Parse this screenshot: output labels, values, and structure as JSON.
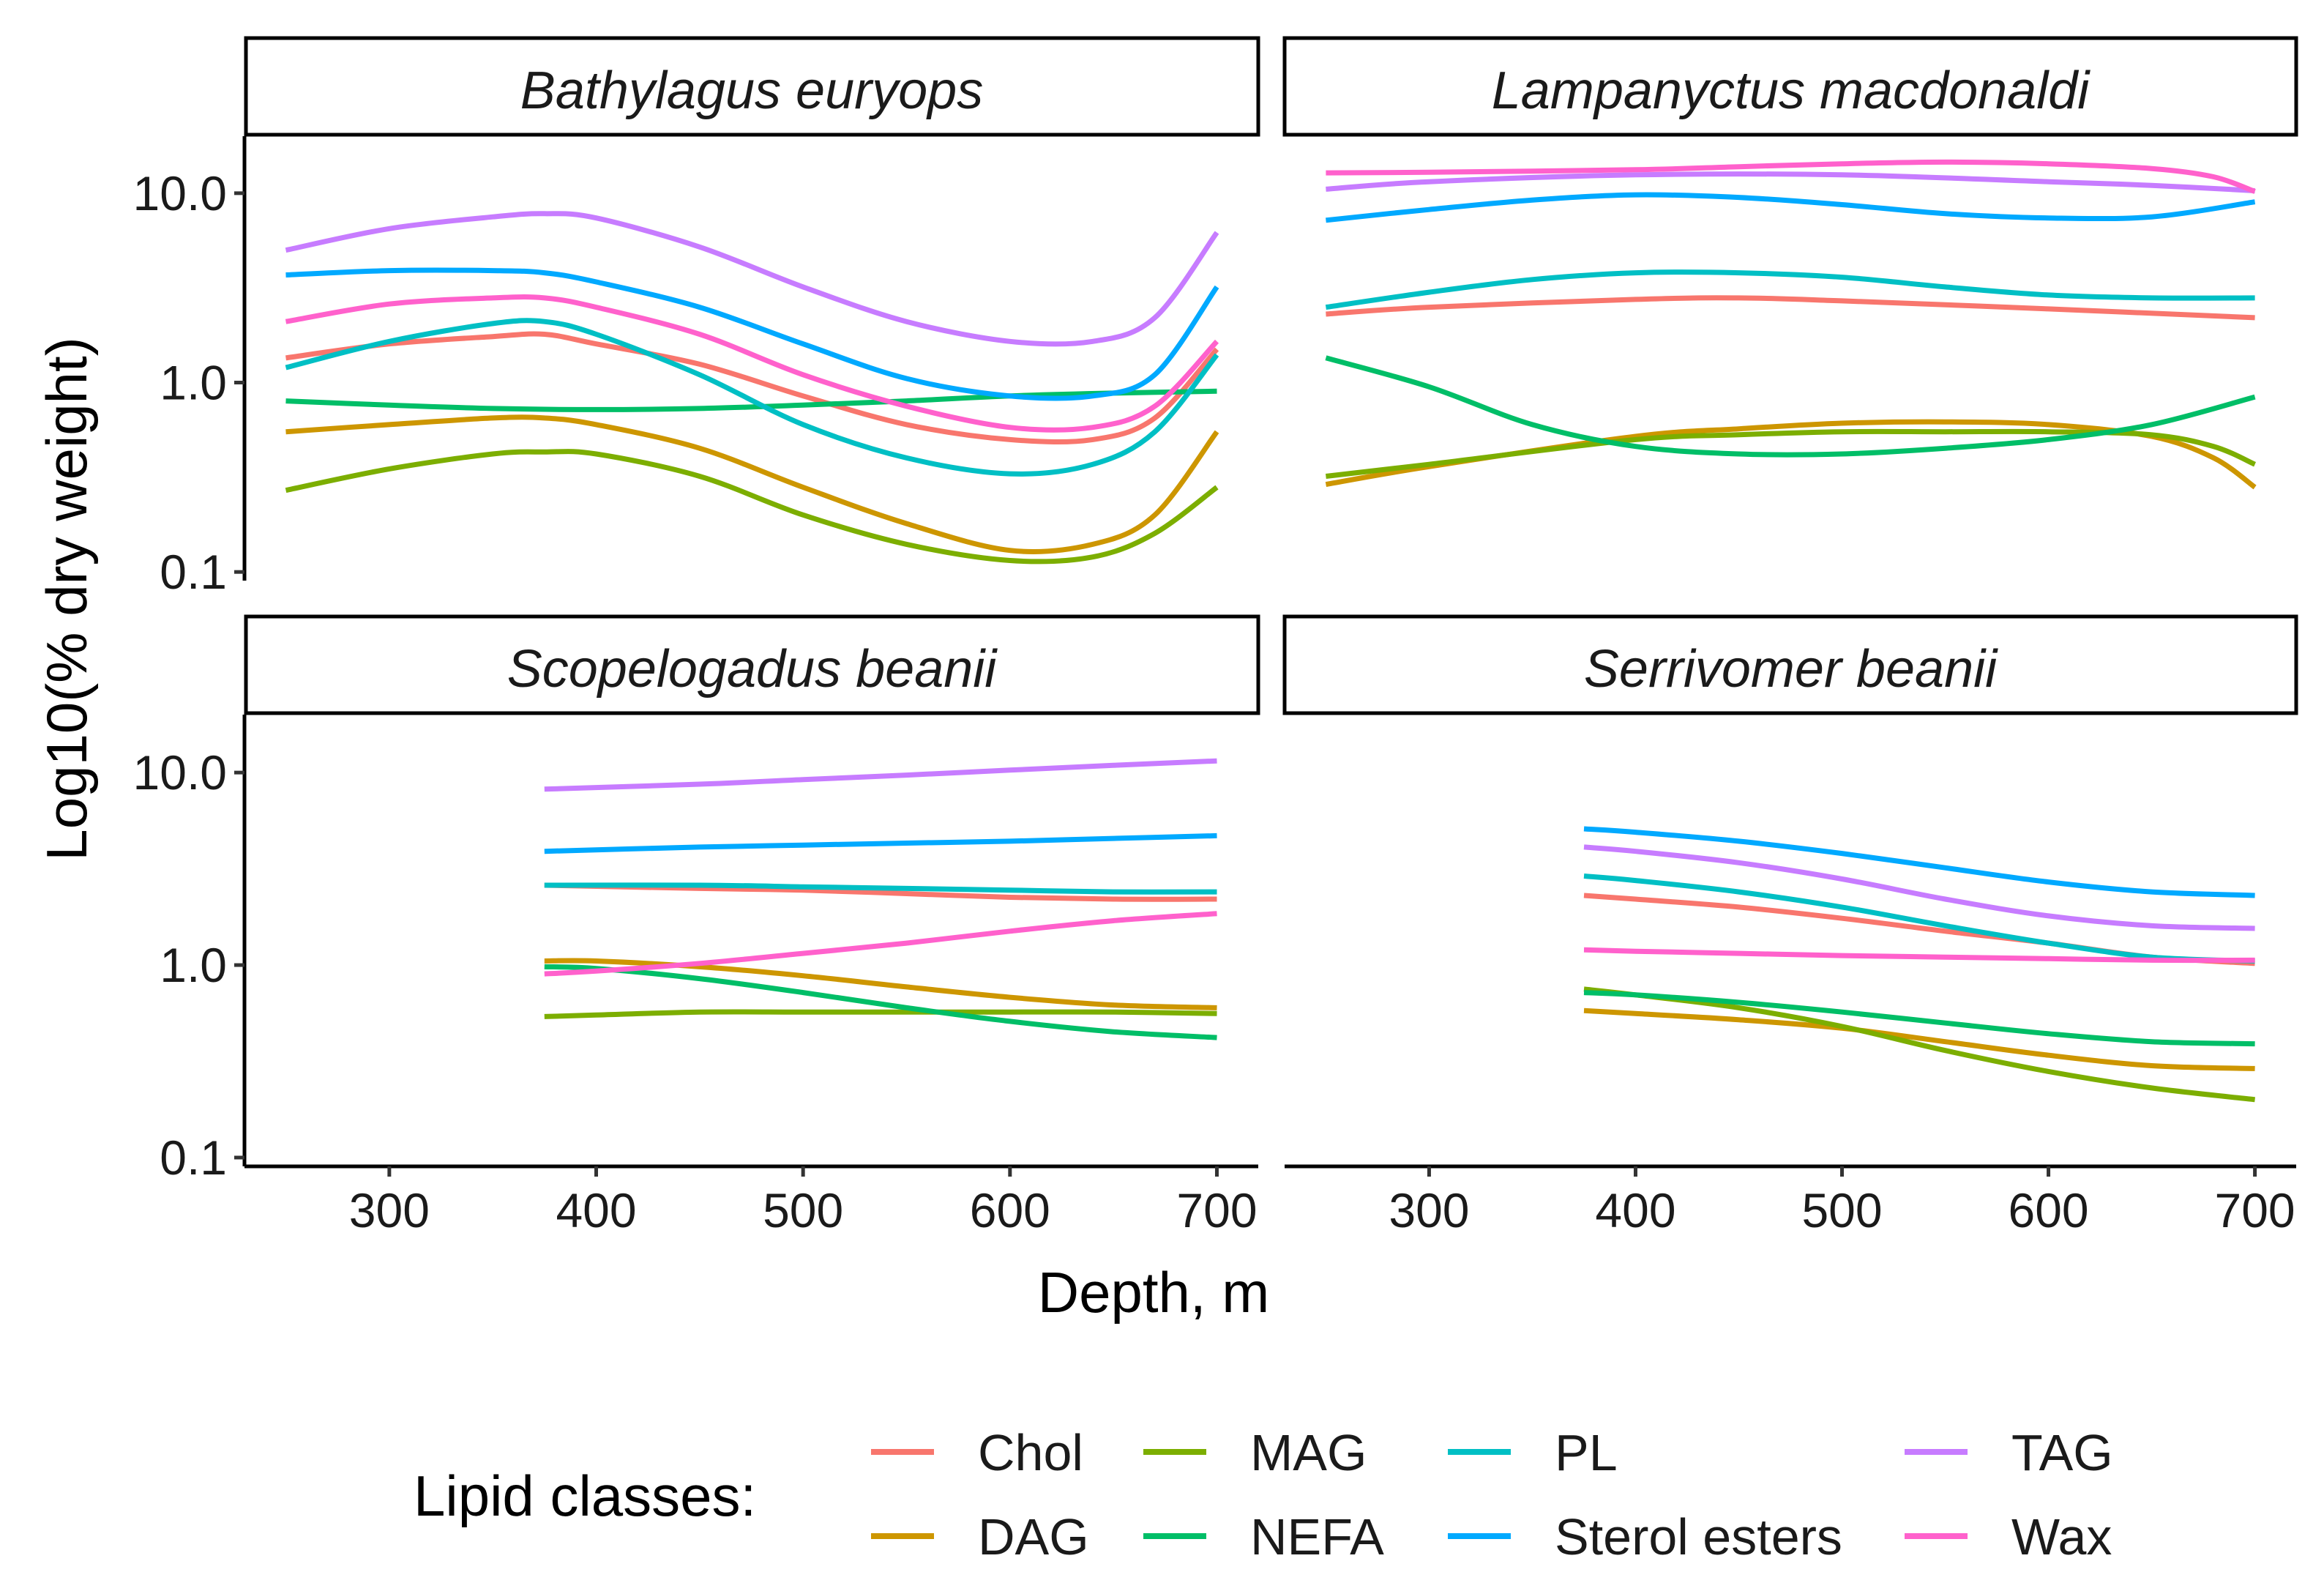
{
  "chart_data": {
    "type": "line",
    "facets": [
      "Bathylagus euryops",
      "Lampanyctus macdonaldi",
      "Scopelogadus beanii",
      "Serrivomer beanii"
    ],
    "xlabel": "Depth, m",
    "ylabel": "Log10(% dry weight)",
    "x_ticks": [
      300,
      400,
      500,
      600,
      700
    ],
    "x_tick_labels": [
      "300",
      "400",
      "500",
      "600",
      "700"
    ],
    "xlim": [
      230,
      720
    ],
    "y_scale": "log10",
    "y_ticks": [
      0.1,
      1.0,
      10.0
    ],
    "y_tick_labels": [
      "0.1",
      "1.0",
      "10.0"
    ],
    "ylim": [
      0.09,
      20
    ],
    "legend": {
      "title": "Lipid classes:",
      "position": "bottom",
      "entries": [
        "Chol",
        "DAG",
        "MAG",
        "NEFA",
        "PL",
        "Sterol esters",
        "TAG",
        "Wax"
      ]
    },
    "colors": {
      "Chol": "#F8766D",
      "DAG": "#CD9600",
      "MAG": "#7CAE00",
      "NEFA": "#00BE67",
      "PL": "#00BFC4",
      "Sterol esters": "#00A9FF",
      "TAG": "#C77CFF",
      "Wax": "#FF61CC"
    },
    "panels": [
      {
        "facet": "Bathylagus euryops",
        "series": [
          {
            "name": "Chol",
            "x": [
              250,
              300,
              350,
              375,
              400,
              450,
              500,
              550,
              600,
              640,
              670,
              700
            ],
            "y": [
              1.35,
              1.6,
              1.75,
              1.8,
              1.6,
              1.25,
              0.85,
              0.6,
              0.5,
              0.5,
              0.65,
              1.5
            ]
          },
          {
            "name": "DAG",
            "x": [
              250,
              300,
              350,
              375,
              400,
              450,
              500,
              550,
              600,
              640,
              670,
              700
            ],
            "y": [
              0.55,
              0.6,
              0.65,
              0.65,
              0.6,
              0.45,
              0.28,
              0.18,
              0.13,
              0.14,
              0.2,
              0.55
            ]
          },
          {
            "name": "MAG",
            "x": [
              250,
              300,
              350,
              375,
              400,
              450,
              500,
              550,
              600,
              640,
              670,
              700
            ],
            "y": [
              0.27,
              0.35,
              0.42,
              0.43,
              0.42,
              0.32,
              0.2,
              0.14,
              0.115,
              0.12,
              0.16,
              0.28
            ]
          },
          {
            "name": "NEFA",
            "x": [
              250,
              300,
              350,
              400,
              450,
              500,
              550,
              600,
              650,
              700
            ],
            "y": [
              0.8,
              0.76,
              0.73,
              0.72,
              0.73,
              0.76,
              0.8,
              0.85,
              0.88,
              0.9
            ]
          },
          {
            "name": "PL",
            "x": [
              250,
              300,
              350,
              375,
              400,
              450,
              500,
              550,
              600,
              640,
              670,
              700
            ],
            "y": [
              1.2,
              1.65,
              2.05,
              2.1,
              1.8,
              1.1,
              0.6,
              0.4,
              0.33,
              0.37,
              0.55,
              1.4
            ]
          },
          {
            "name": "Sterol esters",
            "x": [
              250,
              300,
              350,
              375,
              400,
              450,
              500,
              550,
              600,
              640,
              670,
              700
            ],
            "y": [
              3.7,
              3.9,
              3.9,
              3.8,
              3.4,
              2.5,
              1.6,
              1.05,
              0.85,
              0.85,
              1.1,
              3.2
            ]
          },
          {
            "name": "TAG",
            "x": [
              250,
              300,
              350,
              375,
              400,
              450,
              500,
              550,
              600,
              640,
              670,
              700
            ],
            "y": [
              5.0,
              6.5,
              7.5,
              7.8,
              7.4,
              5.2,
              3.2,
              2.1,
              1.65,
              1.65,
              2.2,
              6.2
            ]
          },
          {
            "name": "Wax",
            "x": [
              250,
              300,
              350,
              375,
              400,
              450,
              500,
              550,
              600,
              640,
              670,
              700
            ],
            "y": [
              2.1,
              2.6,
              2.8,
              2.8,
              2.5,
              1.8,
              1.1,
              0.75,
              0.58,
              0.58,
              0.75,
              1.65
            ]
          }
        ]
      },
      {
        "facet": "Lampanyctus macdonaldi",
        "series": [
          {
            "name": "Chol",
            "x": [
              250,
              300,
              400,
              450,
              500,
              600,
              700
            ],
            "y": [
              2.3,
              2.5,
              2.75,
              2.8,
              2.7,
              2.45,
              2.2
            ]
          },
          {
            "name": "DAG",
            "x": [
              250,
              300,
              400,
              450,
              500,
              550,
              600,
              650,
              680,
              700
            ],
            "y": [
              0.29,
              0.36,
              0.52,
              0.57,
              0.61,
              0.62,
              0.6,
              0.52,
              0.4,
              0.28
            ]
          },
          {
            "name": "MAG",
            "x": [
              250,
              300,
              400,
              450,
              500,
              550,
              600,
              650,
              680,
              700
            ],
            "y": [
              0.32,
              0.37,
              0.5,
              0.53,
              0.55,
              0.55,
              0.55,
              0.53,
              0.46,
              0.37
            ]
          },
          {
            "name": "NEFA",
            "x": [
              250,
              300,
              350,
              400,
              450,
              500,
              550,
              600,
              650,
              700
            ],
            "y": [
              1.35,
              0.95,
              0.6,
              0.46,
              0.42,
              0.42,
              0.45,
              0.5,
              0.6,
              0.84
            ]
          },
          {
            "name": "PL",
            "x": [
              250,
              300,
              350,
              400,
              450,
              500,
              550,
              600,
              650,
              700
            ],
            "y": [
              2.5,
              3.0,
              3.5,
              3.8,
              3.8,
              3.6,
              3.2,
              2.9,
              2.8,
              2.8
            ]
          },
          {
            "name": "Sterol esters",
            "x": [
              250,
              300,
              350,
              400,
              450,
              500,
              550,
              600,
              650,
              700
            ],
            "y": [
              7.2,
              8.2,
              9.2,
              9.8,
              9.5,
              8.7,
              7.8,
              7.4,
              7.5,
              9.0
            ]
          },
          {
            "name": "TAG",
            "x": [
              250,
              300,
              400,
              500,
              600,
              650,
              700
            ],
            "y": [
              10.5,
              11.5,
              12.5,
              12.5,
              11.5,
              11.0,
              10.3
            ]
          },
          {
            "name": "Wax",
            "x": [
              250,
              300,
              400,
              450,
              500,
              550,
              600,
              650,
              680,
              700
            ],
            "y": [
              12.8,
              12.9,
              13.3,
              13.8,
              14.3,
              14.6,
              14.3,
              13.5,
              12.2,
              10.2
            ]
          }
        ]
      },
      {
        "facet": "Scopelogadus beanii",
        "series": [
          {
            "name": "Chol",
            "x": [
              375,
              450,
              500,
              550,
              600,
              650,
              700
            ],
            "y": [
              2.6,
              2.5,
              2.45,
              2.35,
              2.25,
              2.2,
              2.2
            ]
          },
          {
            "name": "DAG",
            "x": [
              375,
              400,
              450,
              500,
              550,
              600,
              650,
              700
            ],
            "y": [
              1.05,
              1.05,
              0.98,
              0.88,
              0.77,
              0.68,
              0.62,
              0.6
            ]
          },
          {
            "name": "MAG",
            "x": [
              375,
              400,
              450,
              500,
              550,
              600,
              650,
              700
            ],
            "y": [
              0.54,
              0.55,
              0.57,
              0.57,
              0.57,
              0.57,
              0.57,
              0.56
            ]
          },
          {
            "name": "NEFA",
            "x": [
              375,
              400,
              450,
              500,
              550,
              600,
              650,
              700
            ],
            "y": [
              0.98,
              0.96,
              0.85,
              0.72,
              0.6,
              0.51,
              0.45,
              0.42
            ]
          },
          {
            "name": "PL",
            "x": [
              375,
              450,
              500,
              550,
              600,
              650,
              700
            ],
            "y": [
              2.6,
              2.6,
              2.55,
              2.5,
              2.45,
              2.4,
              2.4
            ]
          },
          {
            "name": "Sterol esters",
            "x": [
              375,
              450,
              500,
              550,
              600,
              650,
              700
            ],
            "y": [
              3.9,
              4.1,
              4.2,
              4.3,
              4.4,
              4.55,
              4.7
            ]
          },
          {
            "name": "TAG",
            "x": [
              375,
              450,
              500,
              550,
              600,
              650,
              700
            ],
            "y": [
              8.2,
              8.7,
              9.2,
              9.7,
              10.3,
              10.9,
              11.5
            ]
          },
          {
            "name": "Wax",
            "x": [
              375,
              400,
              450,
              500,
              550,
              600,
              650,
              700
            ],
            "y": [
              0.9,
              0.93,
              1.02,
              1.15,
              1.3,
              1.5,
              1.7,
              1.85
            ]
          }
        ]
      },
      {
        "facet": "Serrivomer beanii",
        "series": [
          {
            "name": "Chol",
            "x": [
              375,
              400,
              450,
              500,
              550,
              600,
              650,
              700
            ],
            "y": [
              2.3,
              2.2,
              2.0,
              1.75,
              1.5,
              1.3,
              1.1,
              1.02
            ]
          },
          {
            "name": "DAG",
            "x": [
              375,
              400,
              450,
              500,
              550,
              600,
              650,
              700
            ],
            "y": [
              0.58,
              0.56,
              0.52,
              0.47,
              0.4,
              0.34,
              0.3,
              0.29
            ]
          },
          {
            "name": "MAG",
            "x": [
              375,
              400,
              450,
              500,
              550,
              600,
              650,
              700
            ],
            "y": [
              0.75,
              0.7,
              0.6,
              0.48,
              0.36,
              0.28,
              0.23,
              0.2
            ]
          },
          {
            "name": "NEFA",
            "x": [
              375,
              400,
              450,
              500,
              550,
              600,
              650,
              700
            ],
            "y": [
              0.72,
              0.7,
              0.64,
              0.57,
              0.5,
              0.44,
              0.4,
              0.39
            ]
          },
          {
            "name": "PL",
            "x": [
              375,
              400,
              450,
              500,
              550,
              600,
              650,
              700
            ],
            "y": [
              2.9,
              2.75,
              2.4,
              2.0,
              1.6,
              1.3,
              1.1,
              1.05
            ]
          },
          {
            "name": "Sterol esters",
            "x": [
              375,
              400,
              450,
              500,
              550,
              600,
              650,
              700
            ],
            "y": [
              5.1,
              4.9,
              4.4,
              3.8,
              3.2,
              2.7,
              2.4,
              2.3
            ]
          },
          {
            "name": "TAG",
            "x": [
              375,
              400,
              450,
              500,
              550,
              600,
              650,
              700
            ],
            "y": [
              4.1,
              3.9,
              3.4,
              2.8,
              2.2,
              1.8,
              1.6,
              1.55
            ]
          },
          {
            "name": "Wax",
            "x": [
              375,
              400,
              450,
              500,
              550,
              600,
              650,
              700
            ],
            "y": [
              1.2,
              1.18,
              1.15,
              1.12,
              1.1,
              1.08,
              1.06,
              1.06
            ]
          }
        ]
      }
    ]
  }
}
